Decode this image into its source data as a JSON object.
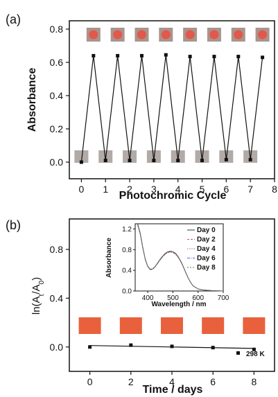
{
  "panels": {
    "a_label": "(a)",
    "b_label": "(b)"
  },
  "colors": {
    "axis": "#111111",
    "marker": "#111111",
    "photo_colored_bg": "#a9958d",
    "photo_colored_dot": "#e2584a",
    "photo_bleached": "#b2aaa6",
    "film_orange": "#e8613c",
    "inset_series": [
      "#333333",
      "#d9534f",
      "#c0392b",
      "#6a5acd",
      "#2e8b57"
    ]
  },
  "chart_data": [
    {
      "type": "line",
      "panel": "a",
      "xlabel": "Photochromic Cycle",
      "ylabel": "Absorbance",
      "xlim": [
        -0.5,
        8
      ],
      "ylim": [
        -0.1,
        0.85
      ],
      "xticks": [
        "0",
        "1",
        "2",
        "3",
        "4",
        "5",
        "6",
        "7",
        "8"
      ],
      "yticks": [
        "0.0",
        "0.2",
        "0.4",
        "0.6",
        "0.8"
      ],
      "x": [
        0,
        0.5,
        1,
        1.5,
        2,
        2.5,
        3,
        3.5,
        4,
        4.5,
        5,
        5.5,
        6,
        6.5,
        7,
        7.5
      ],
      "y": [
        0.0,
        0.64,
        0.01,
        0.64,
        0.01,
        0.64,
        0.01,
        0.645,
        0.01,
        0.635,
        0.01,
        0.635,
        0.015,
        0.635,
        0.015,
        0.63
      ],
      "colored_state_images": 8,
      "bleached_state_images": 8
    },
    {
      "type": "scatter",
      "panel": "b",
      "xlabel": "Time / days",
      "ylabel": "ln(A_t/A_0)",
      "xlim": [
        -1,
        9
      ],
      "ylim": [
        -0.2,
        1.05
      ],
      "xticks": [
        "0",
        "2",
        "4",
        "6",
        "8"
      ],
      "yticks": [
        "0.0",
        "0.4",
        "0.8"
      ],
      "x": [
        0,
        2,
        4,
        6,
        8
      ],
      "y": [
        0.0,
        0.015,
        0.005,
        -0.005,
        -0.02
      ],
      "fit_line": {
        "x": [
          0,
          8
        ],
        "y": [
          0.012,
          -0.012
        ]
      },
      "legend": "298 K",
      "film_images": 5,
      "inset": {
        "type": "line",
        "xlabel": "Wavelength / nm",
        "ylabel": "Absorbance",
        "xlim": [
          350,
          700
        ],
        "ylim": [
          0.0,
          1.3
        ],
        "xticks": [
          "400",
          "500",
          "600",
          "700"
        ],
        "yticks": [
          "0.0",
          "0.4",
          "0.8",
          "1.2"
        ],
        "series": [
          {
            "name": "Day 0"
          },
          {
            "name": "Day 2"
          },
          {
            "name": "Day 4"
          },
          {
            "name": "Day 6"
          },
          {
            "name": "Day 8"
          }
        ],
        "curve_points": {
          "x": [
            360,
            370,
            380,
            390,
            400,
            410,
            420,
            430,
            440,
            450,
            460,
            470,
            480,
            490,
            500,
            510,
            520,
            530,
            540,
            550,
            560,
            570,
            580,
            600,
            620,
            650,
            700
          ],
          "y": [
            1.3,
            1.12,
            0.85,
            0.62,
            0.48,
            0.42,
            0.43,
            0.48,
            0.55,
            0.62,
            0.68,
            0.73,
            0.76,
            0.77,
            0.76,
            0.73,
            0.67,
            0.59,
            0.49,
            0.37,
            0.26,
            0.17,
            0.1,
            0.04,
            0.02,
            0.01,
            0.0
          ]
        }
      }
    }
  ]
}
